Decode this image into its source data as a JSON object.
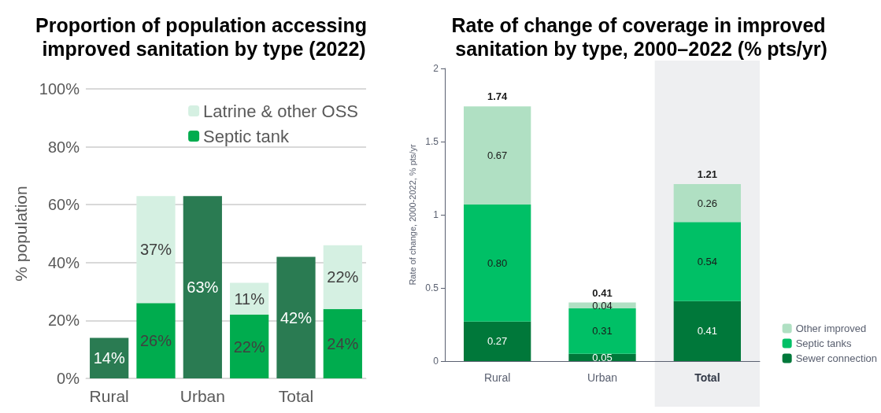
{
  "chart_data": [
    {
      "type": "bar",
      "title": "Proportion of population accessing improved sanitation by type (2022)",
      "ylabel": "% population",
      "categories": [
        "Rural",
        null,
        "Urban",
        null,
        "Total",
        null
      ],
      "stacked": true,
      "series": [
        {
          "color": "#2a7b52",
          "values": [
            14,
            null,
            63,
            null,
            42,
            null
          ],
          "value_labels": [
            "14%",
            null,
            "63%",
            null,
            "42%",
            null
          ]
        },
        {
          "name": "Septic tank",
          "color": "#00ac4e",
          "values": [
            null,
            26,
            null,
            22,
            null,
            24
          ],
          "value_labels": [
            null,
            "26%",
            null,
            "22%",
            null,
            "24%"
          ]
        },
        {
          "name": "Latrine & other OSS",
          "color": "#d5f0e2",
          "values": [
            null,
            37,
            null,
            11,
            null,
            22
          ],
          "value_labels": [
            null,
            "37%",
            null,
            "11%",
            null,
            "22%"
          ]
        }
      ],
      "ylim": [
        0,
        100
      ],
      "yticks": [
        {
          "value": 0,
          "label": "0%"
        },
        {
          "value": 20,
          "label": "20%"
        },
        {
          "value": 40,
          "label": "40%"
        },
        {
          "value": 60,
          "label": "60%"
        },
        {
          "value": 80,
          "label": "80%"
        },
        {
          "value": 100,
          "label": "100%"
        }
      ],
      "grid": "y",
      "legend": "top right"
    },
    {
      "type": "bar",
      "title": "Rate of change of coverage in improved sanitation by type, 2000–2022 (% pts/yr)",
      "ylabel": "Rate of change, 2000-2022, % pts/yr",
      "categories": [
        "Rural",
        "Urban",
        "Total"
      ],
      "stacked": true,
      "series": [
        {
          "name": "Sewer connection",
          "color": "#00783a",
          "values": [
            0.27,
            0.05,
            0.41
          ],
          "value_labels": [
            "0.27",
            "0.05",
            "0.41"
          ]
        },
        {
          "name": "Septic tanks",
          "color": "#00c066",
          "values": [
            0.8,
            0.31,
            0.54
          ],
          "value_labels": [
            "0.80",
            "0.31",
            "0.54"
          ]
        },
        {
          "name": "Other improved",
          "color": "#b0e0c3",
          "values": [
            0.67,
            0.04,
            0.26
          ],
          "value_labels": [
            "0.67",
            "0.04",
            "0.26"
          ]
        }
      ],
      "totals": [
        "1.74",
        "0.41",
        "1.21"
      ],
      "bands": [
        {
          "axis": "x",
          "from": "Total",
          "to": "Total",
          "color": "#eeeff1"
        }
      ],
      "ylim": [
        0,
        2
      ],
      "yticks": [
        0,
        0.5,
        1,
        1.5,
        2
      ],
      "grid": false,
      "legend": "bottom right"
    }
  ]
}
